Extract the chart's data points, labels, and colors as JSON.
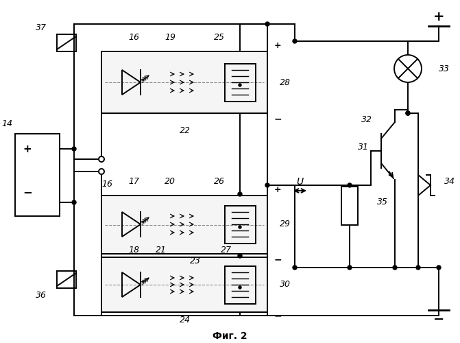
{
  "bg_color": "#ffffff",
  "title": "Фиг. 2",
  "fig_width": 6.71,
  "fig_height": 5.0,
  "dpi": 100
}
